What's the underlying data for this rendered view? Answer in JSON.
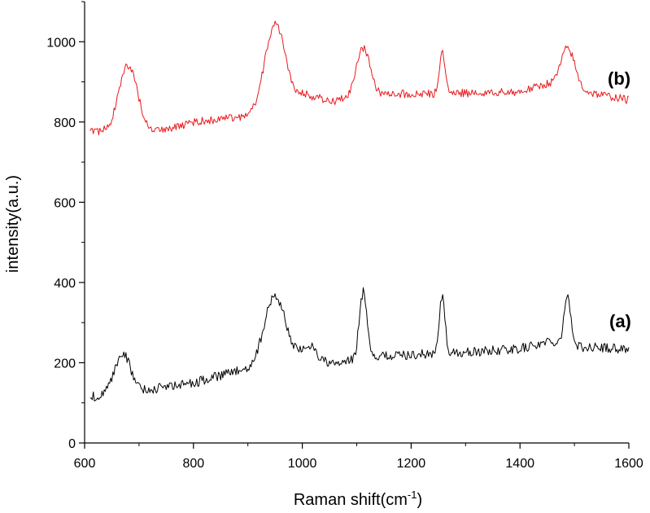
{
  "chart_data": {
    "type": "line",
    "xlabel": "Raman shift(cm",
    "xlabel_sup": "-1",
    "xlabel_close": ")",
    "ylabel": "intensity(a.u.)",
    "xlim": [
      600,
      1600
    ],
    "ylim": [
      0,
      1100
    ],
    "x_ticks": [
      600,
      800,
      1000,
      1200,
      1400,
      1600
    ],
    "y_ticks": [
      0,
      200,
      400,
      600,
      800,
      1000
    ],
    "grid": false,
    "series": [
      {
        "name": "(a)",
        "color": "#000000",
        "baseline": [
          [
            610,
            115
          ],
          [
            700,
            130
          ],
          [
            800,
            150
          ],
          [
            900,
            185
          ],
          [
            930,
            215
          ],
          [
            1000,
            220
          ],
          [
            1060,
            195
          ],
          [
            1120,
            215
          ],
          [
            1200,
            220
          ],
          [
            1300,
            225
          ],
          [
            1400,
            235
          ],
          [
            1460,
            255
          ],
          [
            1500,
            240
          ],
          [
            1600,
            235
          ]
        ],
        "peaks": [
          [
            670,
            100,
            14
          ],
          [
            950,
            150,
            18
          ],
          [
            1015,
            30,
            10
          ],
          [
            1112,
            165,
            7
          ],
          [
            1257,
            145,
            5
          ],
          [
            1487,
            125,
            6
          ]
        ],
        "noise": 12
      },
      {
        "name": "(b)",
        "color": "#e8191d",
        "baseline": [
          [
            610,
            775
          ],
          [
            700,
            775
          ],
          [
            760,
            785
          ],
          [
            800,
            800
          ],
          [
            900,
            815
          ],
          [
            930,
            850
          ],
          [
            1000,
            870
          ],
          [
            1060,
            850
          ],
          [
            1100,
            870
          ],
          [
            1200,
            870
          ],
          [
            1300,
            872
          ],
          [
            1400,
            875
          ],
          [
            1450,
            895
          ],
          [
            1500,
            880
          ],
          [
            1600,
            855
          ]
        ],
        "peaks": [
          [
            680,
            165,
            17
          ],
          [
            950,
            190,
            17
          ],
          [
            1112,
            115,
            12
          ],
          [
            1257,
            105,
            5
          ],
          [
            1488,
            100,
            13
          ]
        ],
        "noise": 10
      }
    ]
  }
}
